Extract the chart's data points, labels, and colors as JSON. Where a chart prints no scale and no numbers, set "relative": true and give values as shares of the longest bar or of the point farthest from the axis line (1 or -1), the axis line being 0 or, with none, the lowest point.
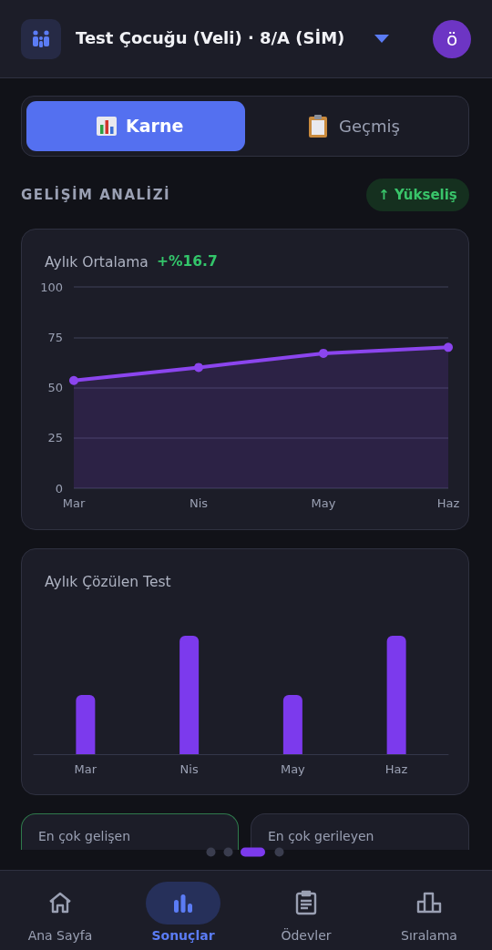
{
  "chart_data": [
    {
      "type": "other",
      "annotations": [
        "Test Çocuğu (Veli) · 8/A (SİM)",
        "ö",
        "Karne",
        "Geçmiş",
        "GELİŞİM ANALİZİ",
        "↑ Yükseliş",
        "En çok gelişen",
        "En çok gerileyen",
        "Ana Sayfa",
        "Sonuçlar",
        "Ödevler",
        "Sıralama"
      ]
    },
    {
      "type": "area",
      "title": "Aylık Ortalama",
      "subtitle": "+%16.7",
      "categories": [
        "Mar",
        "Nis",
        "May",
        "Haz"
      ],
      "values": [
        53.5,
        60,
        67,
        70
      ],
      "color": "#8b45ee",
      "ylim": [
        0,
        100
      ],
      "yticks": [
        0,
        25,
        50,
        75,
        100
      ],
      "grid": "y",
      "marker": "circle"
    },
    {
      "type": "bar",
      "title": "Aylık Çözülen Test",
      "categories": [
        "Mar",
        "Nis",
        "May",
        "Haz"
      ],
      "values": [
        0.5,
        1,
        0.5,
        1
      ],
      "color": "#7c3aed",
      "relative": true
    }
  ]
}
